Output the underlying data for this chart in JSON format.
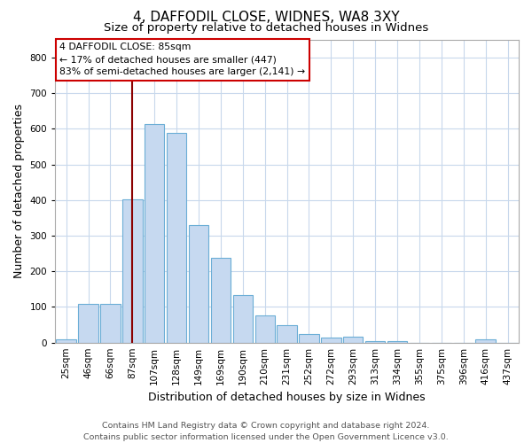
{
  "title": "4, DAFFODIL CLOSE, WIDNES, WA8 3XY",
  "subtitle": "Size of property relative to detached houses in Widnes",
  "xlabel": "Distribution of detached houses by size in Widnes",
  "ylabel": "Number of detached properties",
  "footer_line1": "Contains HM Land Registry data © Crown copyright and database right 2024.",
  "footer_line2": "Contains public sector information licensed under the Open Government Licence v3.0.",
  "categories": [
    "25sqm",
    "46sqm",
    "66sqm",
    "87sqm",
    "107sqm",
    "128sqm",
    "149sqm",
    "169sqm",
    "190sqm",
    "210sqm",
    "231sqm",
    "252sqm",
    "272sqm",
    "293sqm",
    "313sqm",
    "334sqm",
    "355sqm",
    "375sqm",
    "396sqm",
    "416sqm",
    "437sqm"
  ],
  "values": [
    8,
    108,
    108,
    402,
    614,
    590,
    330,
    237,
    133,
    77,
    50,
    25,
    13,
    17,
    5,
    5,
    0,
    0,
    0,
    8,
    0
  ],
  "bar_color": "#c6d9f0",
  "bar_edge_color": "#6baed6",
  "vline_x": 3,
  "vline_color": "#8b0000",
  "annotation_text": "4 DAFFODIL CLOSE: 85sqm\n← 17% of detached houses are smaller (447)\n83% of semi-detached houses are larger (2,141) →",
  "annotation_box_color": "white",
  "annotation_box_edge_color": "#cc0000",
  "ylim": [
    0,
    850
  ],
  "yticks": [
    0,
    100,
    200,
    300,
    400,
    500,
    600,
    700,
    800
  ],
  "bg_color": "white",
  "grid_color": "#c8d8ec",
  "title_fontsize": 11,
  "subtitle_fontsize": 9.5,
  "axis_label_fontsize": 9,
  "tick_fontsize": 7.5,
  "footer_fontsize": 6.8,
  "annotation_fontsize": 7.8
}
